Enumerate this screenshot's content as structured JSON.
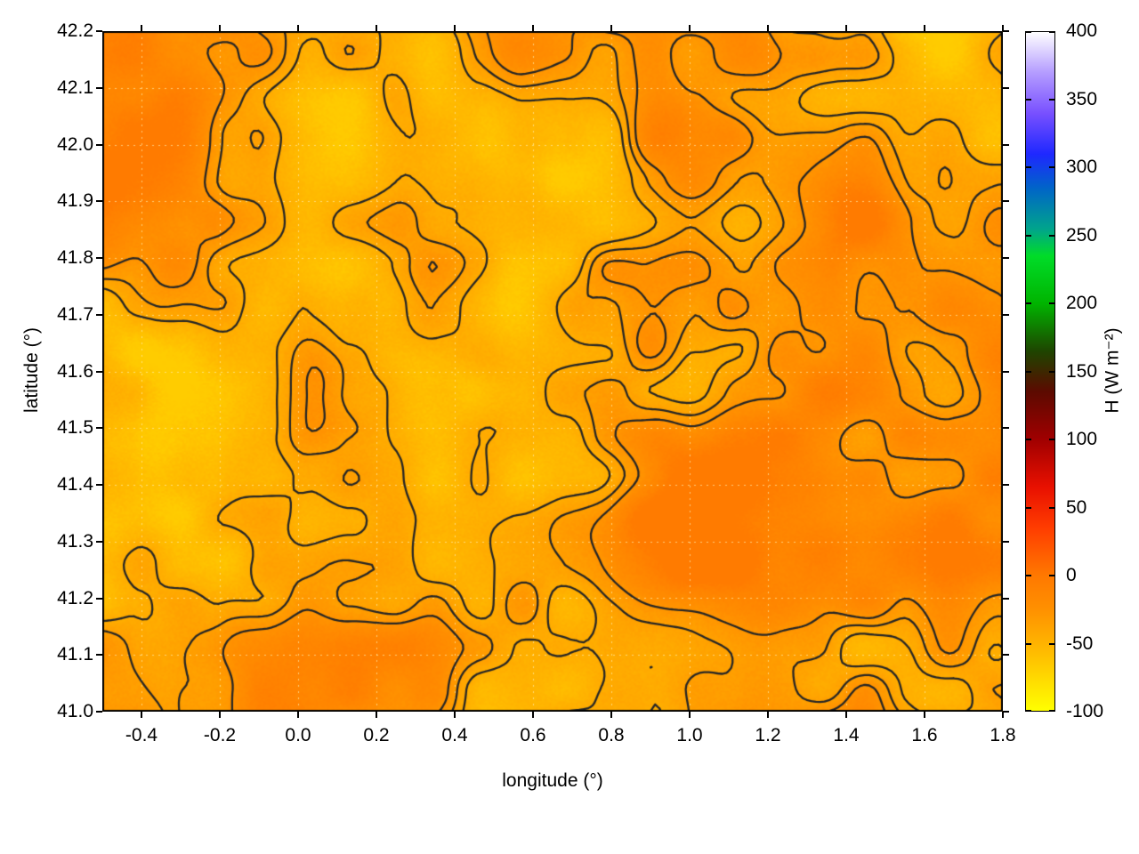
{
  "chart_data": {
    "type": "heatmap",
    "title": "",
    "xlabel": "longitude (°)",
    "ylabel": "latitude (°)",
    "xlim": [
      -0.5,
      1.8
    ],
    "ylim": [
      41.0,
      42.2
    ],
    "grid": true,
    "x_ticks": {
      "values": [
        -0.4,
        -0.2,
        0.0,
        0.2,
        0.4,
        0.6,
        0.8,
        1.0,
        1.2,
        1.4,
        1.6,
        1.8
      ],
      "labels": [
        "-0.4",
        "-0.2",
        "0.0",
        "0.2",
        "0.4",
        "0.6",
        "0.8",
        "1.0",
        "1.2",
        "1.4",
        "1.6",
        "1.8"
      ]
    },
    "y_ticks": {
      "values": [
        41.0,
        41.1,
        41.2,
        41.3,
        41.4,
        41.5,
        41.6,
        41.7,
        41.8,
        41.9,
        42.0,
        42.1,
        42.2
      ],
      "labels": [
        "41.0",
        "41.1",
        "41.2",
        "41.3",
        "41.4",
        "41.5",
        "41.6",
        "41.7",
        "41.8",
        "41.9",
        "42.0",
        "42.1",
        "42.2"
      ]
    },
    "field": {
      "description": "Spatial map of sensible heat flux H over a region spanning longitude -0.5 to 1.8 deg and latitude 41.0 to 42.2 deg; dominantly orange (H near -30 to -5 W m-2) with yellow-orange patches (H near -70 to -55 W m-2) and dark wandering contour lines overlaid; smoother uniform orange region in the bottom-right corner",
      "dominant_range_w_m2": [
        -60,
        -5
      ],
      "high_patch_range_w_m2": [
        -75,
        -55
      ],
      "contour_line_color": "#262626"
    },
    "colorbar": {
      "label": "H (W m⁻²)",
      "min": -100,
      "max": 400,
      "ticks": {
        "values": [
          -100,
          -50,
          0,
          50,
          100,
          150,
          200,
          250,
          300,
          350,
          400
        ],
        "labels": [
          "-100",
          "-50",
          "0",
          "50",
          "100",
          "150",
          "200",
          "250",
          "300",
          "350",
          "400"
        ]
      },
      "palette": [
        {
          "value": -100,
          "color": "#ffff00"
        },
        {
          "value": -60,
          "color": "#ffc000"
        },
        {
          "value": -25,
          "color": "#ff9000"
        },
        {
          "value": 0,
          "color": "#ff7800"
        },
        {
          "value": 35,
          "color": "#ff3c00"
        },
        {
          "value": 65,
          "color": "#e81000"
        },
        {
          "value": 100,
          "color": "#a00000"
        },
        {
          "value": 135,
          "color": "#5c0a00"
        },
        {
          "value": 165,
          "color": "#1e4500"
        },
        {
          "value": 200,
          "color": "#00b400"
        },
        {
          "value": 235,
          "color": "#00dc28"
        },
        {
          "value": 255,
          "color": "#00a48c"
        },
        {
          "value": 285,
          "color": "#0064c8"
        },
        {
          "value": 310,
          "color": "#1e28ff"
        },
        {
          "value": 340,
          "color": "#7850ff"
        },
        {
          "value": 370,
          "color": "#b49cff"
        },
        {
          "value": 400,
          "color": "#ffffff"
        }
      ]
    }
  }
}
